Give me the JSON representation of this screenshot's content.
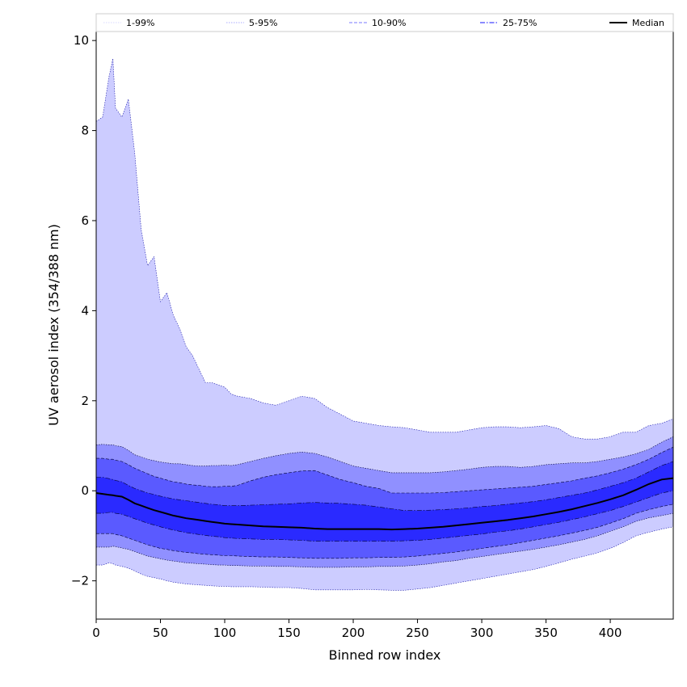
{
  "chart_data": {
    "type": "area",
    "title": "",
    "xlabel": "Binned row index",
    "ylabel": "UV aerosol index (354/388 nm)",
    "xlim": [
      0,
      449
    ],
    "ylim": [
      -2.85,
      10.2
    ],
    "grid": false,
    "legend_placement": "top, full width above plot",
    "x_ticks": [
      0,
      50,
      100,
      150,
      200,
      250,
      300,
      350,
      400
    ],
    "y_ticks": [
      -2,
      0,
      2,
      4,
      6,
      8,
      10
    ],
    "x_tick_labels": [
      "0",
      "50",
      "100",
      "150",
      "200",
      "250",
      "300",
      "350",
      "400"
    ],
    "y_tick_labels": [
      "−2",
      "0",
      "2",
      "4",
      "6",
      "8",
      "10"
    ],
    "x": [
      0,
      5,
      10,
      13,
      15,
      20,
      25,
      30,
      35,
      40,
      45,
      50,
      55,
      60,
      65,
      70,
      75,
      80,
      85,
      90,
      95,
      100,
      105,
      110,
      120,
      130,
      140,
      150,
      160,
      170,
      180,
      190,
      200,
      210,
      220,
      230,
      240,
      250,
      260,
      270,
      280,
      290,
      300,
      310,
      320,
      330,
      340,
      350,
      360,
      370,
      380,
      390,
      400,
      410,
      420,
      430,
      440,
      449
    ],
    "series": [
      {
        "name": "1-99%",
        "color": "#ccccff",
        "upper": [
          8.2,
          8.3,
          9.2,
          9.6,
          8.5,
          8.3,
          8.7,
          7.5,
          5.8,
          5.0,
          5.2,
          4.2,
          4.4,
          3.9,
          3.6,
          3.2,
          3.0,
          2.7,
          2.4,
          2.4,
          2.35,
          2.3,
          2.15,
          2.1,
          2.05,
          1.95,
          1.9,
          2.0,
          2.1,
          2.05,
          1.85,
          1.7,
          1.55,
          1.5,
          1.45,
          1.42,
          1.4,
          1.35,
          1.3,
          1.3,
          1.3,
          1.35,
          1.4,
          1.42,
          1.42,
          1.4,
          1.42,
          1.45,
          1.38,
          1.2,
          1.15,
          1.15,
          1.2,
          1.3,
          1.3,
          1.45,
          1.5,
          1.6
        ],
        "lower": [
          -1.65,
          -1.65,
          -1.6,
          -1.62,
          -1.65,
          -1.68,
          -1.72,
          -1.78,
          -1.85,
          -1.9,
          -1.93,
          -1.96,
          -2.0,
          -2.03,
          -2.05,
          -2.07,
          -2.08,
          -2.09,
          -2.1,
          -2.11,
          -2.12,
          -2.12,
          -2.13,
          -2.13,
          -2.13,
          -2.14,
          -2.15,
          -2.15,
          -2.17,
          -2.2,
          -2.2,
          -2.2,
          -2.2,
          -2.19,
          -2.2,
          -2.21,
          -2.21,
          -2.18,
          -2.15,
          -2.1,
          -2.05,
          -2.0,
          -1.95,
          -1.9,
          -1.85,
          -1.8,
          -1.75,
          -1.68,
          -1.6,
          -1.52,
          -1.45,
          -1.38,
          -1.28,
          -1.15,
          -1.0,
          -0.92,
          -0.85,
          -0.8
        ]
      },
      {
        "name": "5-95%",
        "color": "#9090ff",
        "upper": [
          1.02,
          1.03,
          1.02,
          1.02,
          1.0,
          0.98,
          0.9,
          0.8,
          0.75,
          0.7,
          0.67,
          0.64,
          0.62,
          0.6,
          0.6,
          0.58,
          0.56,
          0.55,
          0.55,
          0.56,
          0.56,
          0.57,
          0.56,
          0.58,
          0.65,
          0.72,
          0.78,
          0.83,
          0.86,
          0.83,
          0.75,
          0.65,
          0.55,
          0.5,
          0.45,
          0.4,
          0.4,
          0.4,
          0.4,
          0.42,
          0.45,
          0.48,
          0.52,
          0.54,
          0.54,
          0.52,
          0.54,
          0.58,
          0.6,
          0.62,
          0.62,
          0.65,
          0.7,
          0.75,
          0.82,
          0.92,
          1.08,
          1.2
        ],
        "lower": [
          -1.25,
          -1.25,
          -1.25,
          -1.23,
          -1.24,
          -1.27,
          -1.3,
          -1.35,
          -1.4,
          -1.45,
          -1.48,
          -1.51,
          -1.54,
          -1.56,
          -1.58,
          -1.6,
          -1.61,
          -1.62,
          -1.63,
          -1.64,
          -1.65,
          -1.65,
          -1.66,
          -1.66,
          -1.67,
          -1.67,
          -1.68,
          -1.68,
          -1.69,
          -1.7,
          -1.7,
          -1.7,
          -1.69,
          -1.69,
          -1.68,
          -1.68,
          -1.67,
          -1.65,
          -1.62,
          -1.58,
          -1.55,
          -1.5,
          -1.46,
          -1.42,
          -1.38,
          -1.34,
          -1.3,
          -1.25,
          -1.2,
          -1.14,
          -1.08,
          -1.0,
          -0.9,
          -0.8,
          -0.68,
          -0.6,
          -0.55,
          -0.5
        ]
      },
      {
        "name": "10-90%",
        "color": "#5a5aff",
        "upper": [
          0.72,
          0.72,
          0.7,
          0.7,
          0.68,
          0.65,
          0.58,
          0.5,
          0.44,
          0.38,
          0.32,
          0.28,
          0.24,
          0.2,
          0.18,
          0.15,
          0.13,
          0.12,
          0.1,
          0.09,
          0.09,
          0.1,
          0.1,
          0.12,
          0.22,
          0.3,
          0.36,
          0.4,
          0.44,
          0.45,
          0.35,
          0.25,
          0.18,
          0.1,
          0.05,
          -0.05,
          -0.05,
          -0.05,
          -0.05,
          -0.04,
          -0.02,
          0.0,
          0.02,
          0.04,
          0.06,
          0.08,
          0.1,
          0.14,
          0.18,
          0.22,
          0.28,
          0.33,
          0.4,
          0.48,
          0.58,
          0.7,
          0.85,
          0.97
        ],
        "lower": [
          -0.95,
          -0.95,
          -0.95,
          -0.95,
          -0.97,
          -1.0,
          -1.05,
          -1.1,
          -1.15,
          -1.2,
          -1.24,
          -1.28,
          -1.3,
          -1.33,
          -1.35,
          -1.37,
          -1.38,
          -1.4,
          -1.41,
          -1.42,
          -1.43,
          -1.44,
          -1.44,
          -1.45,
          -1.46,
          -1.47,
          -1.47,
          -1.48,
          -1.49,
          -1.5,
          -1.5,
          -1.5,
          -1.49,
          -1.49,
          -1.48,
          -1.48,
          -1.47,
          -1.45,
          -1.42,
          -1.39,
          -1.36,
          -1.32,
          -1.28,
          -1.24,
          -1.2,
          -1.15,
          -1.1,
          -1.05,
          -1.0,
          -0.94,
          -0.88,
          -0.81,
          -0.72,
          -0.62,
          -0.5,
          -0.42,
          -0.35,
          -0.3
        ]
      },
      {
        "name": "25-75%",
        "color": "#2a2aff",
        "upper": [
          0.3,
          0.3,
          0.27,
          0.25,
          0.23,
          0.2,
          0.12,
          0.05,
          0.0,
          -0.05,
          -0.08,
          -0.12,
          -0.15,
          -0.18,
          -0.2,
          -0.22,
          -0.24,
          -0.26,
          -0.28,
          -0.3,
          -0.31,
          -0.33,
          -0.33,
          -0.33,
          -0.32,
          -0.31,
          -0.3,
          -0.29,
          -0.27,
          -0.26,
          -0.27,
          -0.28,
          -0.3,
          -0.32,
          -0.36,
          -0.4,
          -0.44,
          -0.44,
          -0.43,
          -0.42,
          -0.4,
          -0.38,
          -0.35,
          -0.33,
          -0.3,
          -0.27,
          -0.24,
          -0.2,
          -0.15,
          -0.1,
          -0.05,
          0.02,
          0.1,
          0.18,
          0.28,
          0.42,
          0.56,
          0.65
        ],
        "lower": [
          -0.5,
          -0.5,
          -0.48,
          -0.48,
          -0.5,
          -0.52,
          -0.57,
          -0.62,
          -0.67,
          -0.72,
          -0.76,
          -0.8,
          -0.84,
          -0.87,
          -0.9,
          -0.93,
          -0.95,
          -0.97,
          -0.99,
          -1.01,
          -1.02,
          -1.04,
          -1.05,
          -1.06,
          -1.07,
          -1.08,
          -1.08,
          -1.09,
          -1.1,
          -1.12,
          -1.12,
          -1.12,
          -1.12,
          -1.12,
          -1.12,
          -1.12,
          -1.11,
          -1.1,
          -1.08,
          -1.05,
          -1.02,
          -0.99,
          -0.96,
          -0.92,
          -0.89,
          -0.85,
          -0.8,
          -0.75,
          -0.7,
          -0.64,
          -0.58,
          -0.51,
          -0.44,
          -0.35,
          -0.25,
          -0.15,
          -0.05,
          0.0
        ]
      }
    ],
    "median": {
      "name": "Median",
      "color": "#000000",
      "values": [
        -0.05,
        -0.07,
        -0.09,
        -0.1,
        -0.11,
        -0.13,
        -0.2,
        -0.28,
        -0.33,
        -0.38,
        -0.43,
        -0.47,
        -0.51,
        -0.55,
        -0.58,
        -0.61,
        -0.63,
        -0.65,
        -0.67,
        -0.69,
        -0.71,
        -0.73,
        -0.74,
        -0.75,
        -0.77,
        -0.79,
        -0.8,
        -0.81,
        -0.82,
        -0.84,
        -0.85,
        -0.85,
        -0.85,
        -0.85,
        -0.85,
        -0.86,
        -0.85,
        -0.84,
        -0.82,
        -0.8,
        -0.77,
        -0.74,
        -0.71,
        -0.68,
        -0.65,
        -0.61,
        -0.57,
        -0.52,
        -0.47,
        -0.41,
        -0.34,
        -0.27,
        -0.19,
        -0.1,
        0.02,
        0.15,
        0.25,
        0.28
      ]
    },
    "legend": [
      {
        "label": "1-99%",
        "color": "#ccccff",
        "dash": "1.5 1.5",
        "width": 0.8
      },
      {
        "label": "5-95%",
        "color": "#9090ff",
        "dash": "1.5 1.5",
        "width": 0.8
      },
      {
        "label": "10-90%",
        "color": "#7a7aff",
        "dash": "4 2",
        "width": 1
      },
      {
        "label": "25-75%",
        "color": "#4444ff",
        "dash": "6 2 1.5 2",
        "width": 1.2
      },
      {
        "label": "Median",
        "color": "#000000",
        "dash": "",
        "width": 2
      }
    ]
  }
}
